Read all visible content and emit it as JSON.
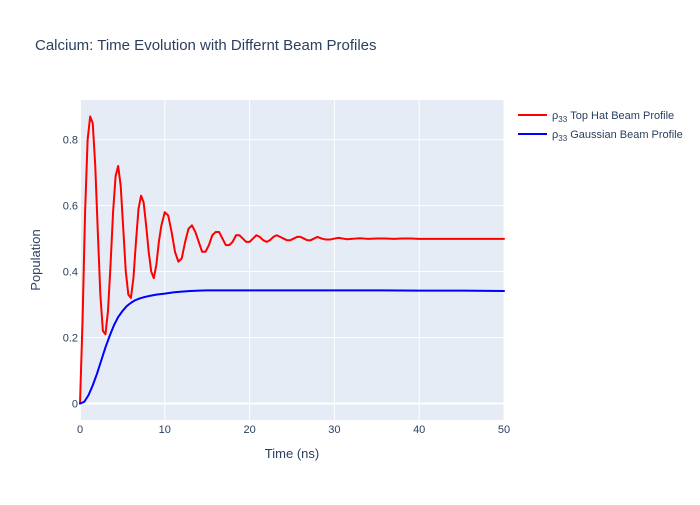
{
  "chart_data": {
    "type": "line",
    "title": "Calcium: Time Evolution with Differnt Beam Profiles",
    "xlabel": "Time (ns)",
    "ylabel": "Population",
    "xlim": [
      0,
      50
    ],
    "ylim": [
      -0.05,
      0.92
    ],
    "x_ticks": [
      0,
      10,
      20,
      30,
      40,
      50
    ],
    "x_tick_labels": [
      "0",
      "10",
      "20",
      "30",
      "40",
      "50"
    ],
    "y_ticks": [
      0,
      0.2,
      0.4,
      0.6,
      0.8
    ],
    "y_tick_labels": [
      "0",
      "0.2",
      "0.4",
      "0.6",
      "0.8"
    ],
    "grid": true,
    "legend_position": "top-right",
    "series": [
      {
        "name_prefix": "ρ",
        "name_sub": "33",
        "name": "Top Hat Beam Profile",
        "color": "#ff0000",
        "x": [
          0,
          0.3,
          0.6,
          0.9,
          1.2,
          1.5,
          1.8,
          2.1,
          2.4,
          2.7,
          3.0,
          3.3,
          3.6,
          3.9,
          4.2,
          4.5,
          4.8,
          5.1,
          5.4,
          5.7,
          6.0,
          6.3,
          6.6,
          6.9,
          7.2,
          7.5,
          7.8,
          8.1,
          8.4,
          8.7,
          9.0,
          9.3,
          9.6,
          10.0,
          10.4,
          10.8,
          11.2,
          11.6,
          12.0,
          12.4,
          12.8,
          13.2,
          13.6,
          14.0,
          14.4,
          14.8,
          15.2,
          15.6,
          16.0,
          16.4,
          16.8,
          17.2,
          17.6,
          18.0,
          18.4,
          18.8,
          19.2,
          19.6,
          20.0,
          20.4,
          20.8,
          21.2,
          21.6,
          22.0,
          22.4,
          22.8,
          23.2,
          23.6,
          24.0,
          24.4,
          24.8,
          25.2,
          25.6,
          26.0,
          26.4,
          26.8,
          27.2,
          27.6,
          28.0,
          28.5,
          29.0,
          29.5,
          30.0,
          30.5,
          31.0,
          31.5,
          32.0,
          32.5,
          33.0,
          33.5,
          34.0,
          35.0,
          36.0,
          37.0,
          38.0,
          39.0,
          40.0,
          42.0,
          45.0,
          48.0,
          50.0
        ],
        "y": [
          0.0,
          0.25,
          0.58,
          0.8,
          0.87,
          0.85,
          0.72,
          0.52,
          0.33,
          0.22,
          0.21,
          0.28,
          0.42,
          0.58,
          0.69,
          0.72,
          0.66,
          0.53,
          0.4,
          0.33,
          0.32,
          0.38,
          0.49,
          0.59,
          0.63,
          0.61,
          0.54,
          0.46,
          0.4,
          0.38,
          0.42,
          0.49,
          0.54,
          0.58,
          0.57,
          0.52,
          0.46,
          0.43,
          0.44,
          0.49,
          0.53,
          0.54,
          0.52,
          0.49,
          0.46,
          0.46,
          0.48,
          0.51,
          0.52,
          0.52,
          0.5,
          0.48,
          0.48,
          0.49,
          0.51,
          0.51,
          0.5,
          0.49,
          0.49,
          0.5,
          0.51,
          0.505,
          0.495,
          0.49,
          0.495,
          0.505,
          0.51,
          0.505,
          0.5,
          0.495,
          0.495,
          0.5,
          0.505,
          0.505,
          0.5,
          0.495,
          0.495,
          0.5,
          0.505,
          0.5,
          0.497,
          0.497,
          0.5,
          0.502,
          0.5,
          0.498,
          0.499,
          0.5,
          0.501,
          0.5,
          0.499,
          0.5,
          0.5,
          0.499,
          0.5,
          0.5,
          0.499,
          0.499,
          0.499,
          0.499,
          0.499
        ]
      },
      {
        "name_prefix": "ρ",
        "name_sub": "33",
        "name": "Gaussian Beam Profile",
        "color": "#0000ff",
        "x": [
          0,
          0.5,
          1.0,
          1.5,
          2.0,
          2.5,
          3.0,
          3.5,
          4.0,
          4.5,
          5.0,
          5.5,
          6.0,
          6.5,
          7.0,
          7.5,
          8.0,
          9.0,
          10.0,
          11.0,
          12.0,
          13.0,
          14.0,
          15.0,
          17.0,
          20.0,
          25.0,
          30.0,
          35.0,
          40.0,
          45.0,
          50.0
        ],
        "y": [
          0.0,
          0.005,
          0.025,
          0.055,
          0.09,
          0.13,
          0.17,
          0.205,
          0.237,
          0.262,
          0.28,
          0.295,
          0.305,
          0.313,
          0.318,
          0.322,
          0.325,
          0.33,
          0.333,
          0.337,
          0.339,
          0.341,
          0.342,
          0.343,
          0.343,
          0.343,
          0.343,
          0.343,
          0.343,
          0.342,
          0.342,
          0.341
        ]
      }
    ]
  }
}
